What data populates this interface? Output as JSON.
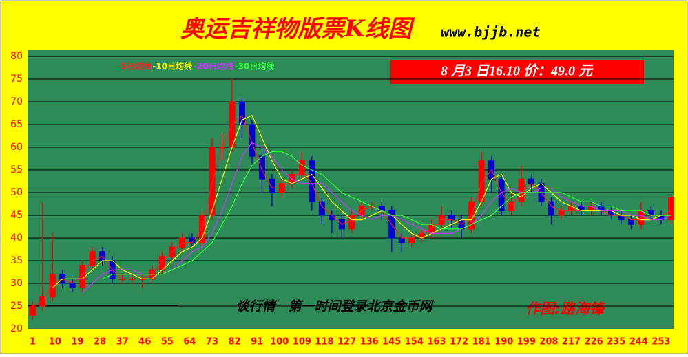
{
  "chart_data": {
    "type": "candlestick",
    "title": "奥运吉祥物版票K线图",
    "subtitle": "www.bjjb.net",
    "price_note": "8 月3 日16.10 价：49.0 元",
    "annotations": [
      "谈行情　第一时间登录北京金币网",
      "作图:路海锋"
    ],
    "xlim": [
      -1,
      258
    ],
    "xticks": [
      1,
      10,
      19,
      28,
      37,
      46,
      55,
      64,
      73,
      82,
      91,
      100,
      109,
      118,
      127,
      136,
      145,
      154,
      163,
      172,
      181,
      190,
      199,
      208,
      217,
      226,
      235,
      244,
      253
    ],
    "ylim": [
      20,
      80
    ],
    "yticks": [
      20,
      25,
      30,
      35,
      40,
      45,
      50,
      55,
      60,
      65,
      70,
      75,
      80
    ],
    "grid": true,
    "up_color": "#ff0000",
    "down_color": "#0000cc",
    "x": [
      1,
      5,
      9,
      13,
      17,
      21,
      25,
      29,
      33,
      37,
      41,
      45,
      49,
      53,
      57,
      61,
      65,
      69,
      73,
      77,
      81,
      85,
      89,
      93,
      97,
      101,
      105,
      109,
      113,
      117,
      121,
      125,
      129,
      133,
      137,
      141,
      145,
      149,
      153,
      157,
      161,
      165,
      169,
      173,
      177,
      181,
      185,
      189,
      193,
      197,
      201,
      205,
      209,
      213,
      217,
      221,
      225,
      229,
      233,
      237,
      241,
      245,
      249,
      253,
      257
    ],
    "open": [
      23,
      25,
      27,
      32,
      30,
      29,
      34,
      37,
      35,
      31,
      31,
      31,
      31,
      33,
      36,
      38,
      40,
      39,
      45,
      60,
      60,
      70,
      65,
      58,
      53,
      50,
      52,
      54,
      57,
      48,
      45,
      44,
      42,
      45,
      47,
      47,
      46,
      40,
      39,
      40,
      41,
      43,
      45,
      44,
      42,
      48,
      57,
      53,
      46,
      48,
      53,
      52,
      48,
      45,
      46,
      47,
      46,
      47,
      46,
      45,
      44,
      43,
      46,
      45,
      44
    ],
    "high": [
      26,
      48,
      41,
      33,
      31,
      35,
      38,
      38,
      36,
      32,
      32,
      32,
      34,
      37,
      39,
      41,
      41,
      46,
      62,
      63,
      75,
      71,
      66,
      59,
      54,
      53,
      55,
      59,
      58,
      49,
      46,
      45,
      46,
      48,
      48,
      48,
      47,
      41,
      41,
      42,
      44,
      47,
      46,
      45,
      49,
      59,
      58,
      54,
      50,
      56,
      54,
      53,
      49,
      47,
      48,
      48,
      48,
      48,
      47,
      46,
      45,
      48,
      47,
      46,
      49
    ],
    "low": [
      22,
      24,
      26,
      29,
      28,
      28,
      33,
      34,
      30,
      30,
      30,
      29,
      30,
      32,
      35,
      37,
      38,
      38,
      44,
      57,
      59,
      62,
      56,
      50,
      47,
      49,
      51,
      53,
      46,
      43,
      41,
      40,
      41,
      44,
      46,
      44,
      37,
      37,
      38,
      39,
      40,
      42,
      42,
      40,
      41,
      47,
      50,
      45,
      45,
      47,
      50,
      47,
      43,
      44,
      45,
      45,
      45,
      45,
      44,
      43,
      42,
      42,
      44,
      43,
      43
    ],
    "close": [
      25,
      27,
      32,
      30,
      29,
      34,
      37,
      35,
      31,
      31,
      31,
      31,
      33,
      36,
      38,
      40,
      39,
      45,
      60,
      60,
      70,
      65,
      58,
      53,
      50,
      52,
      54,
      57,
      48,
      45,
      44,
      42,
      45,
      47,
      47,
      46,
      40,
      39,
      40,
      41,
      43,
      45,
      44,
      42,
      48,
      57,
      53,
      46,
      48,
      53,
      52,
      48,
      45,
      46,
      47,
      46,
      47,
      46,
      45,
      44,
      43,
      46,
      45,
      44,
      49
    ],
    "series": [
      {
        "name": "-5日均线",
        "color": "#ff2020",
        "values": [
          25,
          26,
          30,
          31,
          30,
          32,
          35,
          36,
          33,
          31,
          31,
          31,
          32,
          35,
          37,
          39,
          39,
          42,
          52,
          60,
          65,
          67,
          61,
          55,
          51,
          51,
          53,
          55,
          52,
          47,
          45,
          43,
          44,
          46,
          47,
          46,
          43,
          40,
          40,
          41,
          42,
          44,
          44,
          43,
          45,
          52,
          55,
          50,
          47,
          50,
          52,
          50,
          47,
          46,
          46,
          46,
          46,
          46,
          45,
          45,
          44,
          44,
          45,
          45,
          46
        ]
      },
      {
        "name": "-10日均线",
        "color": "#ffff00",
        "values": [
          null,
          null,
          29,
          31,
          31,
          31,
          33,
          35,
          35,
          33,
          32,
          31,
          31,
          33,
          35,
          37,
          38,
          40,
          46,
          53,
          60,
          66,
          67,
          62,
          57,
          53,
          52,
          53,
          54,
          51,
          48,
          46,
          44,
          44,
          45,
          46,
          45,
          43,
          41,
          40,
          41,
          42,
          43,
          44,
          44,
          48,
          53,
          54,
          50,
          49,
          51,
          52,
          50,
          48,
          47,
          46,
          46,
          46,
          46,
          45,
          45,
          44,
          44,
          45,
          45
        ]
      },
      {
        "name": "-20日均线",
        "color": "#cc33ff",
        "values": [
          null,
          null,
          null,
          null,
          null,
          28,
          30,
          32,
          33,
          33,
          33,
          32,
          32,
          32,
          33,
          35,
          37,
          38,
          41,
          46,
          52,
          58,
          61,
          60,
          58,
          55,
          53,
          52,
          52,
          52,
          50,
          48,
          46,
          45,
          44,
          45,
          45,
          44,
          43,
          42,
          41,
          41,
          41,
          42,
          43,
          45,
          48,
          50,
          51,
          50,
          50,
          51,
          51,
          49,
          48,
          47,
          47,
          46,
          46,
          46,
          45,
          45,
          44,
          44,
          45
        ]
      },
      {
        "name": "-30日均线",
        "color": "#33ff33",
        "values": [
          null,
          null,
          null,
          null,
          null,
          null,
          null,
          31,
          32,
          32,
          32,
          32,
          32,
          32,
          33,
          34,
          35,
          37,
          39,
          43,
          47,
          52,
          56,
          58,
          59,
          59,
          58,
          56,
          55,
          54,
          52,
          50,
          49,
          48,
          47,
          46,
          45,
          45,
          44,
          43,
          43,
          42,
          42,
          42,
          43,
          44,
          45,
          47,
          49,
          50,
          50,
          50,
          50,
          50,
          49,
          48,
          48,
          47,
          47,
          46,
          46,
          46,
          45,
          45,
          45
        ]
      }
    ]
  }
}
